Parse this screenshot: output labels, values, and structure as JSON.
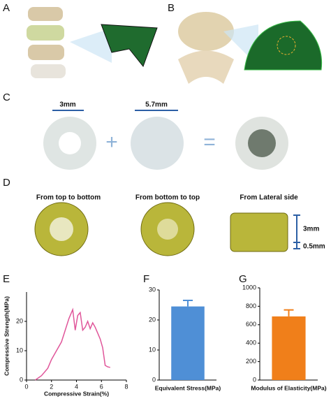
{
  "panel_labels": [
    "A",
    "B",
    "C",
    "D",
    "E",
    "F",
    "G"
  ],
  "panel_c": {
    "dims": [
      "3mm",
      "5.7mm"
    ]
  },
  "panel_d": {
    "views": [
      "From top to bottom",
      "From bottom to top",
      "From Lateral side"
    ],
    "dims": [
      "3mm",
      "0.5mm"
    ]
  },
  "chart_data": [
    {
      "type": "line",
      "xlabel": "Compressive Strain(%)",
      "ylabel": "Compressive Strength(MPa)",
      "x": [
        0.7,
        1.2,
        1.7,
        2.0,
        2.4,
        2.8,
        3.1,
        3.4,
        3.7,
        3.9,
        4.1,
        4.3,
        4.5,
        4.7,
        4.9,
        5.1,
        5.3,
        5.5,
        5.7,
        5.9,
        6.1,
        6.3,
        6.5,
        6.7
      ],
      "series": [
        {
          "color": "#e0569a",
          "values": [
            0,
            1.5,
            4,
            7,
            10,
            13,
            17,
            21,
            24,
            17,
            22,
            23,
            17,
            18,
            20,
            17.5,
            19.5,
            18,
            16,
            14,
            11,
            5,
            4.5,
            4.3
          ]
        }
      ],
      "xlim": [
        0,
        8
      ],
      "xticks": [
        0,
        2,
        4,
        6,
        8
      ],
      "ylim": [
        0,
        30
      ],
      "yticks": [
        0,
        10,
        20
      ]
    },
    {
      "type": "bar",
      "xlabel": "Equivalent Stress(MPa)",
      "values": [
        24.5
      ],
      "errors": [
        2
      ],
      "color": "#4f8fd6",
      "ylim": [
        0,
        30
      ],
      "yticks": [
        0,
        10,
        20,
        30
      ]
    },
    {
      "type": "bar",
      "xlabel": "Modulus of Elasticity(MPa)",
      "values": [
        690
      ],
      "errors": [
        70
      ],
      "color": "#f07f1a",
      "ylim": [
        0,
        1000
      ],
      "yticks": [
        0,
        200,
        400,
        600,
        800,
        1000
      ]
    }
  ]
}
